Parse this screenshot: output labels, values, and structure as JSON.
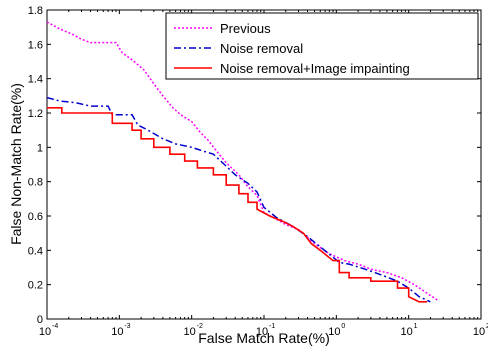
{
  "chart_data": {
    "type": "line",
    "xlabel": "False Match Rate(%)",
    "ylabel": "False Non-Match Rate(%)",
    "xscale": "log",
    "xlim": [
      0.0001,
      100
    ],
    "ylim": [
      0,
      1.8
    ],
    "xticks": [
      {
        "value": 0.0001,
        "base": "10",
        "exp": "-4"
      },
      {
        "value": 0.001,
        "base": "10",
        "exp": "-3"
      },
      {
        "value": 0.01,
        "base": "10",
        "exp": "-2"
      },
      {
        "value": 0.1,
        "base": "10",
        "exp": "-1"
      },
      {
        "value": 1,
        "base": "10",
        "exp": "0"
      },
      {
        "value": 10,
        "base": "10",
        "exp": "1"
      },
      {
        "value": 100,
        "base": "10",
        "exp": "2"
      }
    ],
    "yticks": [
      "0",
      "0.2",
      "0.4",
      "0.6",
      "0.8",
      "1",
      "1.2",
      "1.4",
      "1.6",
      "1.8"
    ],
    "legend_position": "top-right",
    "grid": false,
    "series": [
      {
        "name": "Previous",
        "color": "#ff00ff",
        "style": "dotted",
        "points": [
          [
            0.0001,
            1.73
          ],
          [
            0.00015,
            1.69
          ],
          [
            0.00022,
            1.66
          ],
          [
            0.0003,
            1.63
          ],
          [
            0.0004,
            1.61
          ],
          [
            0.0009,
            1.61
          ],
          [
            0.0011,
            1.55
          ],
          [
            0.0015,
            1.51
          ],
          [
            0.0022,
            1.45
          ],
          [
            0.003,
            1.37
          ],
          [
            0.004,
            1.3
          ],
          [
            0.0055,
            1.23
          ],
          [
            0.007,
            1.19
          ],
          [
            0.01,
            1.15
          ],
          [
            0.013,
            1.09
          ],
          [
            0.017,
            1.04
          ],
          [
            0.023,
            0.97
          ],
          [
            0.03,
            0.91
          ],
          [
            0.045,
            0.84
          ],
          [
            0.06,
            0.77
          ],
          [
            0.08,
            0.72
          ],
          [
            0.1,
            0.62
          ],
          [
            0.15,
            0.58
          ],
          [
            0.2,
            0.55
          ],
          [
            0.3,
            0.52
          ],
          [
            0.5,
            0.44
          ],
          [
            0.8,
            0.38
          ],
          [
            1.3,
            0.34
          ],
          [
            2,
            0.32
          ],
          [
            3,
            0.29
          ],
          [
            5,
            0.27
          ],
          [
            8,
            0.24
          ],
          [
            12,
            0.2
          ],
          [
            18,
            0.15
          ],
          [
            25,
            0.11
          ]
        ]
      },
      {
        "name": "Noise removal",
        "color": "#0000cc",
        "style": "dashdot",
        "points": [
          [
            0.0001,
            1.29
          ],
          [
            0.00015,
            1.27
          ],
          [
            0.00025,
            1.26
          ],
          [
            0.0004,
            1.24
          ],
          [
            0.0007,
            1.24
          ],
          [
            0.0008,
            1.19
          ],
          [
            0.0015,
            1.19
          ],
          [
            0.0018,
            1.13
          ],
          [
            0.0025,
            1.1
          ],
          [
            0.004,
            1.05
          ],
          [
            0.006,
            1.02
          ],
          [
            0.01,
            1.0
          ],
          [
            0.014,
            0.98
          ],
          [
            0.02,
            0.96
          ],
          [
            0.03,
            0.89
          ],
          [
            0.04,
            0.84
          ],
          [
            0.06,
            0.79
          ],
          [
            0.08,
            0.74
          ],
          [
            0.1,
            0.65
          ],
          [
            0.15,
            0.59
          ],
          [
            0.25,
            0.54
          ],
          [
            0.4,
            0.48
          ],
          [
            0.6,
            0.42
          ],
          [
            0.9,
            0.36
          ],
          [
            1.1,
            0.33
          ],
          [
            1.5,
            0.32
          ],
          [
            2.5,
            0.29
          ],
          [
            4,
            0.26
          ],
          [
            7,
            0.22
          ],
          [
            10,
            0.18
          ],
          [
            14,
            0.13
          ],
          [
            20,
            0.1
          ]
        ]
      },
      {
        "name": "Noise removal+Image impainting",
        "color": "#ff0000",
        "style": "solid",
        "points": [
          [
            0.0001,
            1.23
          ],
          [
            0.00016,
            1.23
          ],
          [
            0.00016,
            1.2
          ],
          [
            0.0008,
            1.2
          ],
          [
            0.0008,
            1.14
          ],
          [
            0.0015,
            1.14
          ],
          [
            0.0015,
            1.1
          ],
          [
            0.002,
            1.1
          ],
          [
            0.002,
            1.05
          ],
          [
            0.003,
            1.05
          ],
          [
            0.003,
            1.0
          ],
          [
            0.005,
            1.0
          ],
          [
            0.005,
            0.96
          ],
          [
            0.008,
            0.96
          ],
          [
            0.008,
            0.92
          ],
          [
            0.012,
            0.92
          ],
          [
            0.012,
            0.88
          ],
          [
            0.02,
            0.88
          ],
          [
            0.02,
            0.84
          ],
          [
            0.03,
            0.84
          ],
          [
            0.03,
            0.78
          ],
          [
            0.045,
            0.78
          ],
          [
            0.045,
            0.73
          ],
          [
            0.06,
            0.73
          ],
          [
            0.06,
            0.68
          ],
          [
            0.08,
            0.68
          ],
          [
            0.08,
            0.64
          ],
          [
            0.12,
            0.6
          ],
          [
            0.18,
            0.57
          ],
          [
            0.25,
            0.54
          ],
          [
            0.35,
            0.5
          ],
          [
            0.45,
            0.44
          ],
          [
            0.6,
            0.4
          ],
          [
            0.9,
            0.34
          ],
          [
            1.1,
            0.34
          ],
          [
            1.1,
            0.27
          ],
          [
            1.5,
            0.27
          ],
          [
            1.5,
            0.24
          ],
          [
            3,
            0.24
          ],
          [
            3,
            0.22
          ],
          [
            7,
            0.22
          ],
          [
            7,
            0.18
          ],
          [
            10,
            0.18
          ],
          [
            10,
            0.13
          ],
          [
            14,
            0.1
          ],
          [
            18,
            0.1
          ]
        ]
      }
    ]
  }
}
